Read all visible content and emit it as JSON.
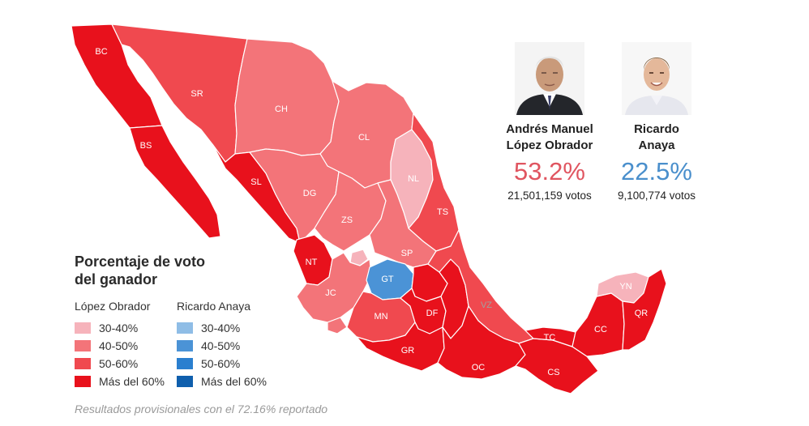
{
  "candidates": [
    {
      "name_line1": "Andrés Manuel",
      "name_line2": "López Obrador",
      "percent": "53.2%",
      "votes": "21,501,159 votos",
      "color": "#e05560",
      "photo_icon": "portrait-lopez-obrador"
    },
    {
      "name_line1": "Ricardo",
      "name_line2": "Anaya",
      "percent": "22.5%",
      "votes": "9,100,774 votos",
      "color": "#4a8fcc",
      "photo_icon": "portrait-anaya"
    }
  ],
  "legend": {
    "title_line1": "Porcentaje de voto",
    "title_line2": "del ganador",
    "columns": [
      {
        "header": "López Obrador",
        "items": [
          {
            "label": "30-40%",
            "color": "#f6b3bb"
          },
          {
            "label": "40-50%",
            "color": "#f37479"
          },
          {
            "label": "50-60%",
            "color": "#f0494f"
          },
          {
            "label": "Más del 60%",
            "color": "#e8111c"
          }
        ]
      },
      {
        "header": "Ricardo Anaya",
        "items": [
          {
            "label": "30-40%",
            "color": "#8fbde6"
          },
          {
            "label": "40-50%",
            "color": "#4b93d6"
          },
          {
            "label": "50-60%",
            "color": "#2a7fcf"
          },
          {
            "label": "Más del 60%",
            "color": "#0f5fad"
          }
        ]
      }
    ]
  },
  "footnote": "Resultados provisionales con el 72.16% reportado",
  "map_data": {
    "title": "",
    "states": [
      {
        "abbr": "BC",
        "winner": "López Obrador",
        "range": "Más del 60%"
      },
      {
        "abbr": "BS",
        "winner": "López Obrador",
        "range": "Más del 60%"
      },
      {
        "abbr": "SR",
        "winner": "López Obrador",
        "range": "50-60%"
      },
      {
        "abbr": "CH",
        "winner": "López Obrador",
        "range": "40-50%"
      },
      {
        "abbr": "CL",
        "winner": "López Obrador",
        "range": "40-50%"
      },
      {
        "abbr": "NL",
        "winner": "López Obrador",
        "range": "30-40%"
      },
      {
        "abbr": "TS",
        "winner": "López Obrador",
        "range": "50-60%"
      },
      {
        "abbr": "SL",
        "winner": "López Obrador",
        "range": "Más del 60%"
      },
      {
        "abbr": "DG",
        "winner": "López Obrador",
        "range": "40-50%"
      },
      {
        "abbr": "ZS",
        "winner": "López Obrador",
        "range": "40-50%"
      },
      {
        "abbr": "SP",
        "winner": "López Obrador",
        "range": "40-50%"
      },
      {
        "abbr": "NT",
        "winner": "López Obrador",
        "range": "Más del 60%"
      },
      {
        "abbr": "JC",
        "winner": "López Obrador",
        "range": "40-50%"
      },
      {
        "abbr": "GT",
        "winner": "Ricardo Anaya",
        "range": "40-50%"
      },
      {
        "abbr": "MN",
        "winner": "López Obrador",
        "range": "50-60%"
      },
      {
        "abbr": "DF",
        "winner": "López Obrador",
        "range": "Más del 60%"
      },
      {
        "abbr": "VZ",
        "winner": "López Obrador",
        "range": "50-60%"
      },
      {
        "abbr": "GR",
        "winner": "López Obrador",
        "range": "Más del 60%"
      },
      {
        "abbr": "OC",
        "winner": "López Obrador",
        "range": "Más del 60%"
      },
      {
        "abbr": "CS",
        "winner": "López Obrador",
        "range": "Más del 60%"
      },
      {
        "abbr": "TC",
        "winner": "López Obrador",
        "range": "Más del 60%"
      },
      {
        "abbr": "CC",
        "winner": "López Obrador",
        "range": "Más del 60%"
      },
      {
        "abbr": "QR",
        "winner": "López Obrador",
        "range": "Más del 60%"
      },
      {
        "abbr": "YN",
        "winner": "López Obrador",
        "range": "30-40%"
      }
    ]
  }
}
